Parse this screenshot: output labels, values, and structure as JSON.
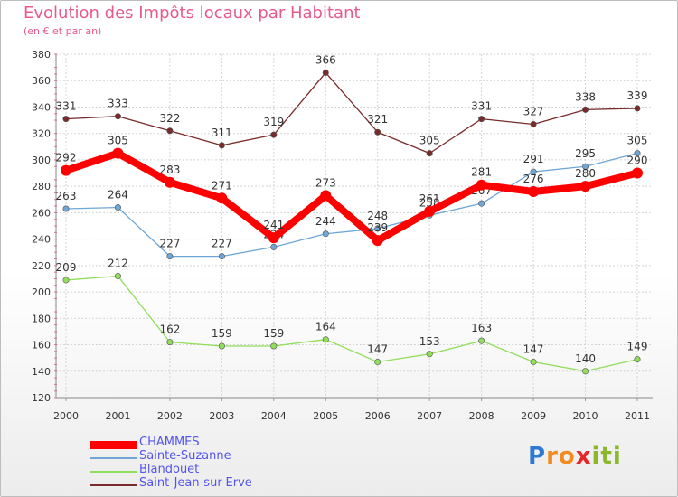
{
  "chart_data": {
    "type": "line",
    "title": "Evolution des Impôts locaux par Habitant",
    "subtitle": "(en € et par an)",
    "x": [
      "2000",
      "2001",
      "2002",
      "2003",
      "2004",
      "2005",
      "2006",
      "2007",
      "2008",
      "2009",
      "2010",
      "2011"
    ],
    "ylim": [
      120,
      380
    ],
    "yticks": [
      120,
      140,
      160,
      180,
      200,
      220,
      240,
      260,
      280,
      300,
      320,
      340,
      360,
      380
    ],
    "grid": true,
    "series": [
      {
        "name": "Saint-Jean-sur-Erve",
        "color": "#7a2a2a",
        "values": [
          331,
          333,
          322,
          311,
          319,
          366,
          321,
          305,
          331,
          327,
          338,
          339
        ]
      },
      {
        "name": "Sainte-Suzanne",
        "color": "#6fa6d6",
        "values": [
          263,
          264,
          227,
          227,
          234,
          244,
          248,
          258,
          267,
          291,
          295,
          305
        ]
      },
      {
        "name": "Blandouet",
        "color": "#90de5a",
        "values": [
          209,
          212,
          162,
          159,
          159,
          164,
          147,
          153,
          163,
          147,
          140,
          149
        ]
      },
      {
        "name": "CHAMMES",
        "color": "#ff0000",
        "values": [
          292,
          305,
          283,
          271,
          241,
          273,
          239,
          261,
          281,
          276,
          280,
          290
        ]
      }
    ],
    "legend_order": [
      "CHAMMES",
      "Sainte-Suzanne",
      "Blandouet",
      "Saint-Jean-sur-Erve"
    ]
  },
  "logo": {
    "letters": [
      "P",
      "r",
      "o",
      "x",
      "i",
      "t",
      "i"
    ],
    "colors": [
      "#2e7ad1",
      "#f28c1e",
      "#f28c1e",
      "#e8262a",
      "#8ab82a",
      "#8ab82a",
      "#8ab82a"
    ]
  }
}
